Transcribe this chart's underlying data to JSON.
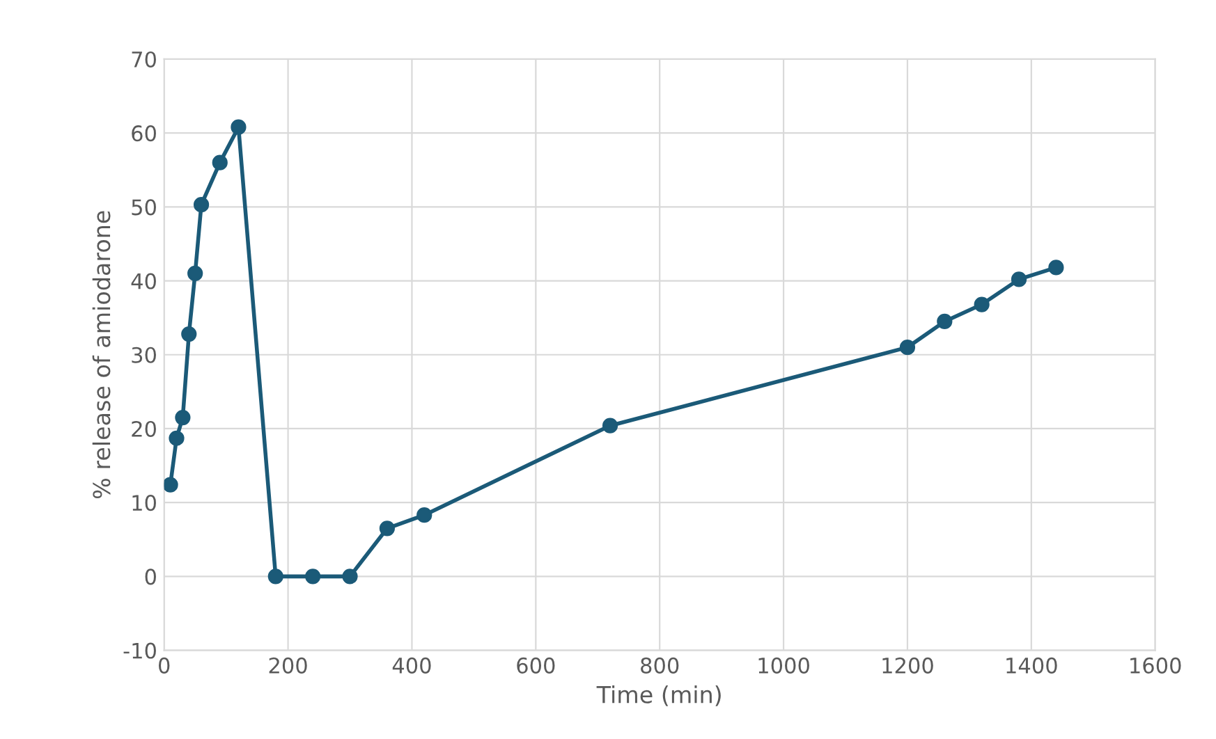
{
  "chart_data": {
    "type": "line",
    "xlabel": "Time (min)",
    "ylabel": "% release of amiodarone",
    "x": [
      10,
      20,
      30,
      40,
      50,
      60,
      90,
      120,
      180,
      240,
      300,
      360,
      420,
      720,
      1200,
      1260,
      1320,
      1380,
      1440
    ],
    "series": [
      {
        "color": "#1b5a78",
        "values": [
          12.4,
          18.7,
          21.5,
          32.8,
          41,
          50.3,
          56,
          60.8,
          0,
          0,
          0,
          6.5,
          8.3,
          20.4,
          31,
          34.5,
          36.8,
          40.2,
          41.8
        ]
      }
    ],
    "xlim": [
      0,
      1600
    ],
    "xticks": [
      0,
      200,
      400,
      600,
      800,
      1000,
      1200,
      1400,
      1600
    ],
    "ylim": [
      -10,
      70
    ],
    "yticks": [
      -10,
      0,
      10,
      20,
      30,
      40,
      50,
      60,
      70
    ],
    "grid": true,
    "marker": "circle",
    "line_style": "solid"
  }
}
